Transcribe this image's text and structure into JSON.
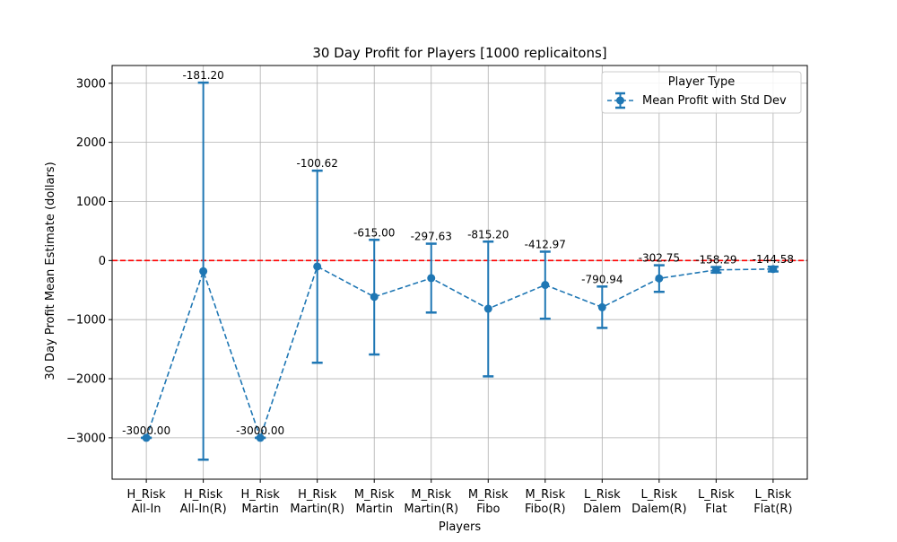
{
  "chart_data": {
    "type": "line",
    "title": "30 Day Profit for Players [1000 replicaitons]",
    "xlabel": "Players",
    "ylabel": "30 Day Profit Mean Estimate (dollars)",
    "ylim": [
      -3700,
      3300
    ],
    "yticks": [
      -3000,
      -2000,
      -1000,
      0,
      1000,
      2000,
      3000
    ],
    "ytick_labels": [
      "−3000",
      "−2000",
      "−1000",
      "0",
      "1000",
      "2000",
      "3000"
    ],
    "grid": true,
    "legend_placement": "top-right",
    "legend_title": "Player Type",
    "reference_line": {
      "y": 0,
      "color": "#ff0000",
      "style": "dashed"
    },
    "categories": [
      [
        "H_Risk",
        "All-In"
      ],
      [
        "H_Risk",
        "All-In(R)"
      ],
      [
        "H_Risk",
        "Martin"
      ],
      [
        "H_Risk",
        "Martin(R)"
      ],
      [
        "M_Risk",
        "Martin"
      ],
      [
        "M_Risk",
        "Martin(R)"
      ],
      [
        "M_Risk",
        "Fibo"
      ],
      [
        "M_Risk",
        "Fibo(R)"
      ],
      [
        "L_Risk",
        "Dalem"
      ],
      [
        "L_Risk",
        "Dalem(R)"
      ],
      [
        "L_Risk",
        "Flat"
      ],
      [
        "L_Risk",
        "Flat(R)"
      ]
    ],
    "series": [
      {
        "name": "Mean Profit with Std Dev",
        "color": "#1f77b4",
        "values": [
          -3000.0,
          -181.2,
          -3000.0,
          -100.62,
          -615.0,
          -297.63,
          -815.2,
          -412.97,
          -790.94,
          -302.75,
          -158.29,
          -144.58
        ],
        "err_low": [
          -3000,
          -3370,
          -3000,
          -1730,
          -1590,
          -880,
          -1960,
          -985,
          -1140,
          -530,
          -205,
          -185
        ],
        "err_high": [
          -3000,
          3010,
          -3000,
          1520,
          350,
          285,
          320,
          150,
          -440,
          -80,
          -110,
          -105
        ],
        "value_labels": [
          "-3000.00",
          "-181.20",
          "-3000.00",
          "-100.62",
          "-615.00",
          "-297.63",
          "-815.20",
          "-412.97",
          "-790.94",
          "-302.75",
          "-158.29",
          "-144.58"
        ]
      }
    ]
  }
}
